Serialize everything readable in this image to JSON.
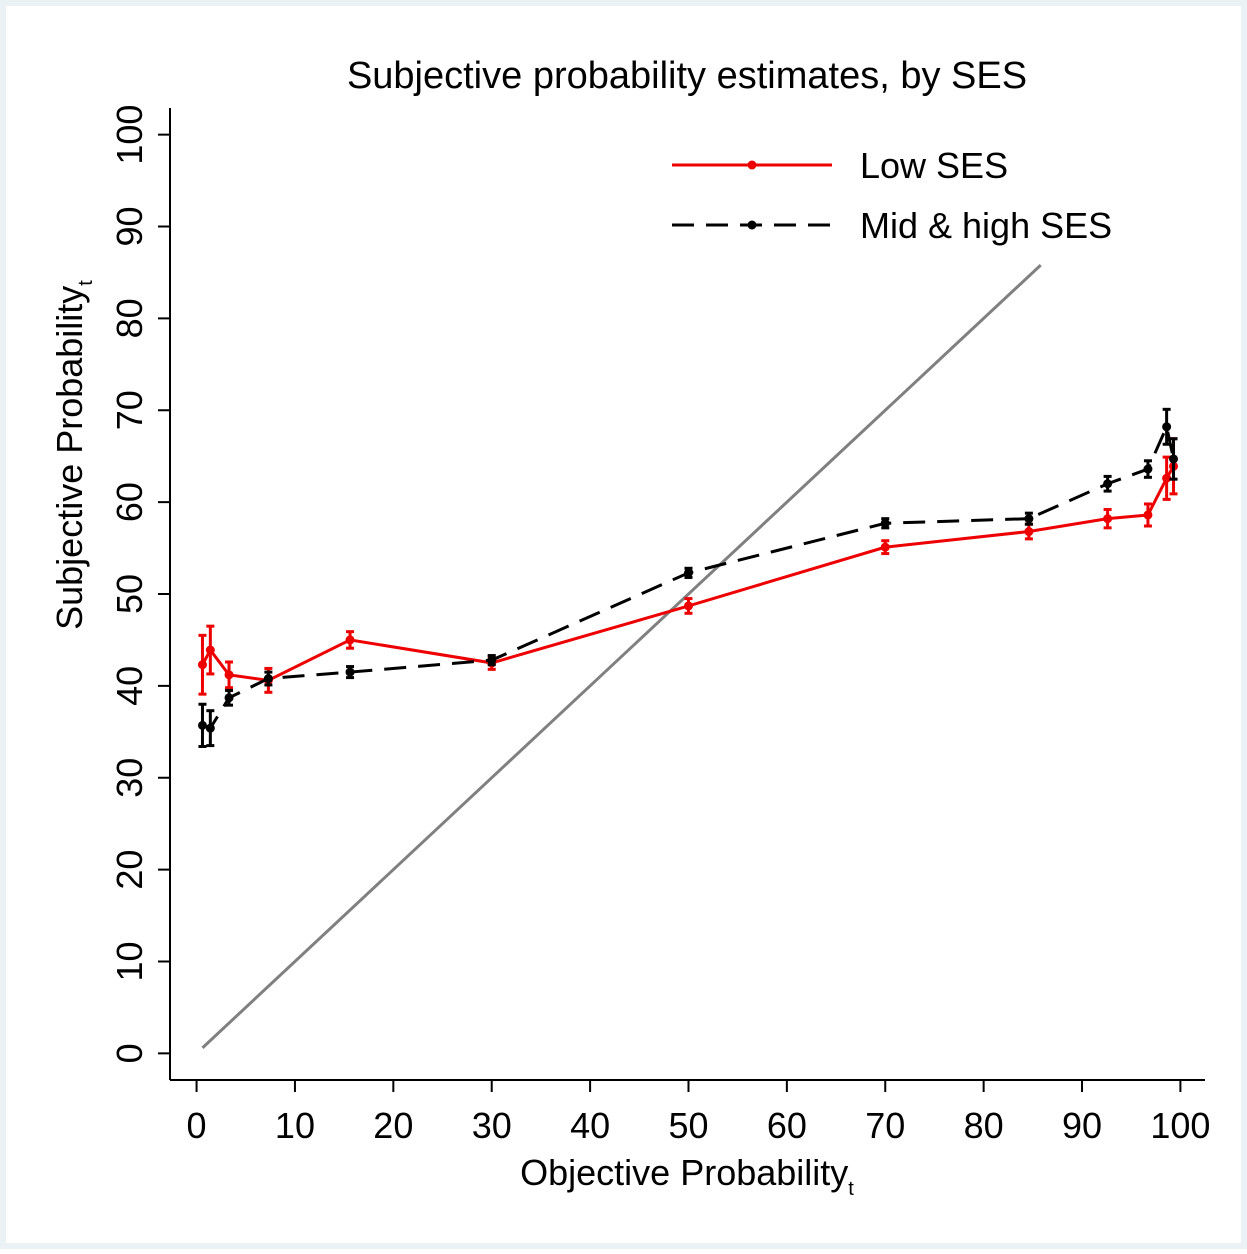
{
  "chart_data": {
    "type": "line",
    "title": "Subjective probability estimates, by SES",
    "xlabel": {
      "text": "Objective Probability",
      "subscript": "t"
    },
    "ylabel": {
      "text": "Subjective Probability",
      "subscript": "t"
    },
    "x": [
      0.6,
      1.4,
      3.3,
      7.3,
      15.6,
      30,
      50,
      70,
      84.6,
      92.6,
      96.7,
      98.6,
      99.3
    ],
    "series": [
      {
        "name": "Low SES",
        "color": "#ee0000",
        "dash": false,
        "values": [
          42.3,
          43.9,
          41.2,
          40.6,
          45.0,
          42.5,
          48.7,
          55.1,
          56.8,
          58.2,
          58.6,
          62.6,
          63.9
        ],
        "errors": [
          3.2,
          2.6,
          1.4,
          1.3,
          0.9,
          0.7,
          0.8,
          0.7,
          0.8,
          1.0,
          1.2,
          2.3,
          3.0
        ]
      },
      {
        "name": "Mid & high SES",
        "color": "#000000",
        "dash": true,
        "values": [
          35.7,
          35.4,
          38.7,
          40.8,
          41.5,
          42.8,
          52.3,
          57.7,
          58.2,
          62.0,
          63.6,
          68.2,
          64.7
        ],
        "errors": [
          2.3,
          1.9,
          0.8,
          0.7,
          0.6,
          0.5,
          0.5,
          0.5,
          0.6,
          0.8,
          0.9,
          1.9,
          2.2
        ]
      }
    ],
    "diagonal": {
      "x": [
        0.6,
        85.8
      ],
      "y": [
        0.6,
        85.8
      ],
      "color": "#808080"
    },
    "xlim": [
      -2.7,
      102.5
    ],
    "ylim": [
      -2.9,
      102.9
    ],
    "xticks": [
      0,
      10,
      20,
      30,
      40,
      50,
      60,
      70,
      80,
      90,
      100
    ],
    "yticks": [
      0,
      10,
      20,
      30,
      40,
      50,
      60,
      70,
      80,
      90,
      100
    ],
    "grid": false,
    "legend": "top-right"
  }
}
